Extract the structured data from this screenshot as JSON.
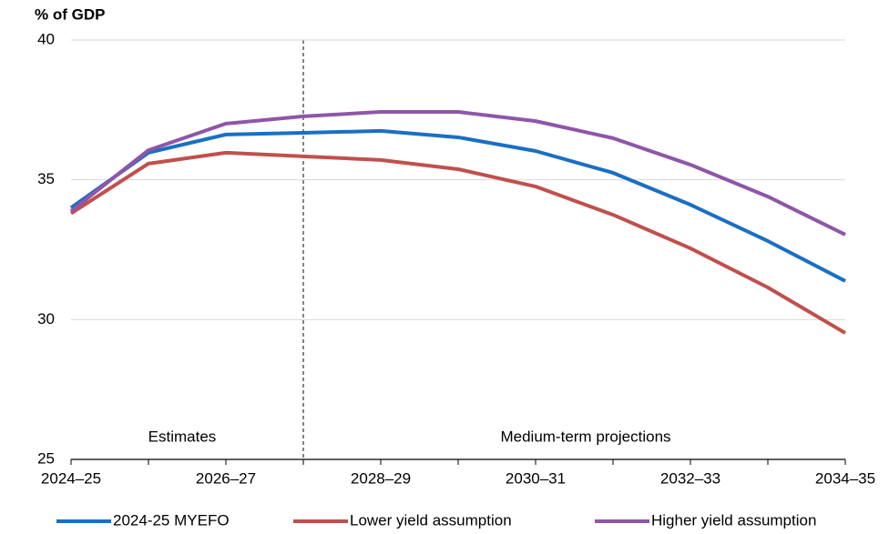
{
  "chart_data": {
    "type": "line",
    "y_label": "% of GDP",
    "categories": [
      "2024–25",
      null,
      "2026–27",
      null,
      "2028–29",
      null,
      "2030–31",
      null,
      "2032–33",
      null,
      "2034–35"
    ],
    "series": [
      {
        "name": "2024-25 MYEFO",
        "color": "#1a6fc4",
        "values": [
          34.0,
          35.97,
          36.62,
          36.68,
          36.75,
          36.52,
          36.03,
          35.25,
          34.11,
          32.81,
          31.38
        ]
      },
      {
        "name": "Lower yield assumption",
        "color": "#c0504d",
        "values": [
          33.8,
          35.58,
          35.97,
          35.84,
          35.71,
          35.38,
          34.76,
          33.75,
          32.55,
          31.15,
          29.52
        ]
      },
      {
        "name": "Higher yield assumption",
        "color": "#8e56a8",
        "values": [
          33.88,
          36.06,
          37.01,
          37.27,
          37.43,
          37.43,
          37.1,
          36.49,
          35.54,
          34.4,
          33.04
        ]
      }
    ],
    "annotations": [
      "Estimates",
      "Medium-term projections"
    ],
    "ylim": [
      25,
      40
    ],
    "yticks": [
      25,
      30,
      35,
      40
    ],
    "grid": true
  }
}
